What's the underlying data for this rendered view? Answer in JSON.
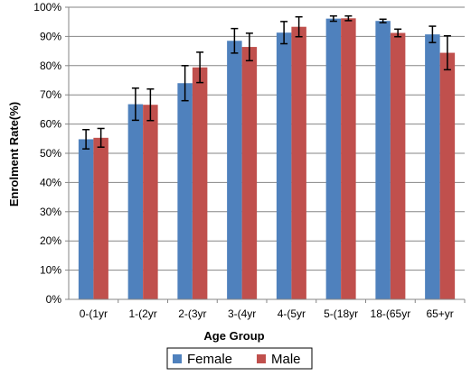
{
  "chart_data": {
    "type": "bar",
    "title": "",
    "xlabel": "Age Group",
    "ylabel": "Enrolment Rate(%)",
    "ylim": [
      0,
      100
    ],
    "yticks": [
      "0%",
      "10%",
      "20%",
      "30%",
      "40%",
      "50%",
      "60%",
      "70%",
      "80%",
      "90%",
      "100%"
    ],
    "categories": [
      "0-(1yr",
      "1-(2yr",
      "2-(3yr",
      "3-(4yr",
      "4-(5yr",
      "5-(18yr",
      "18-(65yr",
      "65+yr"
    ],
    "series": [
      {
        "name": "Female",
        "color": "#4f81bd",
        "values": [
          54.8,
          66.8,
          74.0,
          88.5,
          91.3,
          96.1,
          95.3,
          90.7
        ],
        "error": [
          3.3,
          5.5,
          6.0,
          4.2,
          3.8,
          0.9,
          0.6,
          2.8
        ]
      },
      {
        "name": "Male",
        "color": "#c0504d",
        "values": [
          55.3,
          66.6,
          79.4,
          86.4,
          93.3,
          96.2,
          91.2,
          84.4
        ],
        "error": [
          3.2,
          5.4,
          5.2,
          4.7,
          3.4,
          0.8,
          1.3,
          5.8
        ]
      }
    ],
    "grid": true,
    "legend_position": "bottom"
  }
}
